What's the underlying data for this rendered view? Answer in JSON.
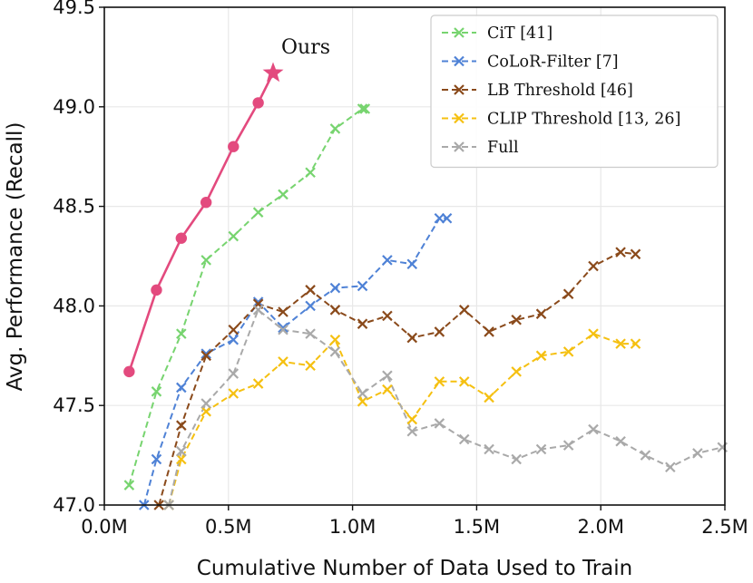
{
  "chart_data": {
    "type": "line",
    "xlabel": "Cumulative Number of Data Used to Train",
    "ylabel": "Avg. Performance (Recall)",
    "xlim": [
      0,
      2.5
    ],
    "ylim": [
      47.0,
      49.5
    ],
    "xticks": [
      0,
      0.5,
      1.0,
      1.5,
      2.0,
      2.5
    ],
    "xtick_labels": [
      "0.0M",
      "0.5M",
      "1.0M",
      "1.5M",
      "2.0M",
      "2.5M"
    ],
    "yticks": [
      47.0,
      47.5,
      48.0,
      48.5,
      49.0,
      49.5
    ],
    "ytick_labels": [
      "47.0",
      "47.5",
      "48.0",
      "48.5",
      "49.0",
      "49.5"
    ],
    "grid": true,
    "legend_position": "top-right",
    "annotations": [
      {
        "text": "Ours",
        "x": 0.69,
        "y": 49.26
      }
    ],
    "series": [
      {
        "name": "Ours",
        "color": "#e34a7e",
        "style": "solid",
        "marker": "circle",
        "in_legend": false,
        "end_marker": "star",
        "x": [
          0.1,
          0.21,
          0.31,
          0.41,
          0.52,
          0.62,
          0.68
        ],
        "y": [
          47.67,
          48.08,
          48.34,
          48.52,
          48.8,
          49.02,
          49.17
        ]
      },
      {
        "name": "CiT [41]",
        "color": "#77d46f",
        "style": "dashed",
        "marker": "x",
        "in_legend": true,
        "x": [
          0.1,
          0.21,
          0.31,
          0.41,
          0.52,
          0.62,
          0.72,
          0.83,
          0.93,
          1.04,
          1.05
        ],
        "y": [
          47.1,
          47.57,
          47.86,
          48.23,
          48.35,
          48.47,
          48.56,
          48.67,
          48.89,
          48.99,
          48.99
        ]
      },
      {
        "name": "CoLoR-Filter [7]",
        "color": "#4f82d6",
        "style": "dashed",
        "marker": "x",
        "in_legend": true,
        "x": [
          0.16,
          0.21,
          0.31,
          0.41,
          0.52,
          0.62,
          0.72,
          0.83,
          0.93,
          1.04,
          1.14,
          1.24,
          1.35,
          1.38
        ],
        "y": [
          47.0,
          47.23,
          47.59,
          47.76,
          47.83,
          48.02,
          47.89,
          48.0,
          48.09,
          48.1,
          48.23,
          48.21,
          48.44,
          48.44
        ]
      },
      {
        "name": "LB Threshold [46]",
        "color": "#8a4a1b",
        "style": "dashed",
        "marker": "x",
        "in_legend": true,
        "x": [
          0.22,
          0.31,
          0.41,
          0.52,
          0.62,
          0.72,
          0.83,
          0.93,
          1.04,
          1.14,
          1.24,
          1.35,
          1.45,
          1.55,
          1.66,
          1.76,
          1.87,
          1.97,
          2.08,
          2.14
        ],
        "y": [
          47.0,
          47.4,
          47.75,
          47.88,
          48.01,
          47.97,
          48.08,
          47.98,
          47.91,
          47.95,
          47.84,
          47.87,
          47.98,
          47.87,
          47.93,
          47.96,
          48.06,
          48.2,
          48.27,
          48.26
        ]
      },
      {
        "name": "CLIP Threshold [13, 26]",
        "color": "#f5c011",
        "style": "dashed",
        "marker": "x",
        "in_legend": true,
        "x": [
          0.26,
          0.31,
          0.41,
          0.52,
          0.62,
          0.72,
          0.83,
          0.93,
          1.04,
          1.14,
          1.24,
          1.35,
          1.45,
          1.55,
          1.66,
          1.76,
          1.87,
          1.97,
          2.08,
          2.14
        ],
        "y": [
          47.0,
          47.23,
          47.47,
          47.56,
          47.61,
          47.72,
          47.7,
          47.83,
          47.52,
          47.58,
          47.43,
          47.62,
          47.62,
          47.54,
          47.67,
          47.75,
          47.77,
          47.86,
          47.81,
          47.81
        ]
      },
      {
        "name": "Full",
        "color": "#a9a9a9",
        "style": "dashed",
        "marker": "x",
        "in_legend": true,
        "x": [
          0.26,
          0.31,
          0.41,
          0.52,
          0.62,
          0.72,
          0.83,
          0.93,
          1.04,
          1.14,
          1.24,
          1.35,
          1.45,
          1.55,
          1.66,
          1.76,
          1.87,
          1.97,
          2.08,
          2.18,
          2.28,
          2.39,
          2.49
        ],
        "y": [
          47.0,
          47.27,
          47.51,
          47.66,
          47.98,
          47.88,
          47.86,
          47.77,
          47.56,
          47.65,
          47.37,
          47.41,
          47.33,
          47.28,
          47.23,
          47.28,
          47.3,
          47.38,
          47.32,
          47.25,
          47.19,
          47.26,
          47.29
        ]
      }
    ]
  }
}
